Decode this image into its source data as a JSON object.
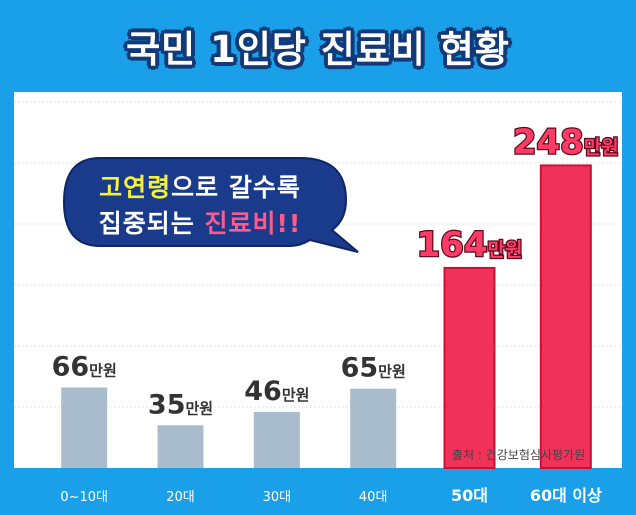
{
  "header": {
    "title": "국민 1인당 진료비 현황"
  },
  "callout": {
    "line1_highlight": "고연령",
    "line1_rest": "으로 갈수록",
    "line2_rest": "집중되는 ",
    "line2_highlight": "진료비!!"
  },
  "source": "출처 : 건강보험심사평가원",
  "colors": {
    "background": "#1aa0e8",
    "title_outline": "#123a78",
    "bar_normal": "#a9bccb",
    "bar_highlight": "#f0315a",
    "label_normal": "#333333",
    "label_highlight_fill": "#ff3b66",
    "bubble_fill": "#1a3a8c"
  },
  "chart_data": {
    "type": "bar",
    "title": "국민 1인당 진료비 현황",
    "categories": [
      "0~10대",
      "20대",
      "30대",
      "40대",
      "50대",
      "60대 이상"
    ],
    "values": [
      66,
      35,
      46,
      65,
      164,
      248
    ],
    "value_labels": [
      "66만원",
      "35만원",
      "46만원",
      "65만원",
      "164만원",
      "248만원"
    ],
    "highlighted": [
      false,
      false,
      false,
      false,
      true,
      true
    ],
    "unit": "만원",
    "ylim": [
      0,
      300
    ],
    "grid": true,
    "legend": "none"
  }
}
